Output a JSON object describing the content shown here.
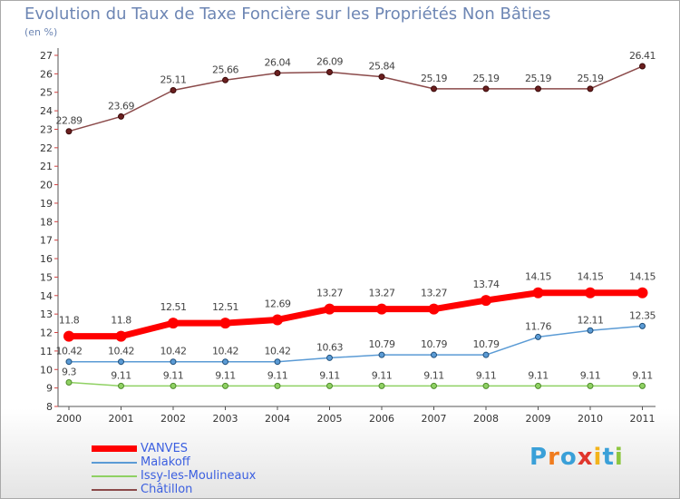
{
  "title": "Evolution du Taux de Taxe Foncière sur les Propriétés Non Bâties",
  "subtitle": "(en %)",
  "logo": {
    "letters": [
      "P",
      "r",
      "o",
      "x",
      "i",
      "t",
      "i"
    ]
  },
  "chart_data": {
    "type": "line",
    "categories": [
      "2000",
      "2001",
      "2002",
      "2003",
      "2004",
      "2005",
      "2006",
      "2007",
      "2008",
      "2009",
      "2010",
      "2011"
    ],
    "ylim": [
      8,
      27
    ],
    "yticks": [
      "8",
      "9",
      "10",
      "11",
      "12",
      "13",
      "14",
      "15",
      "16",
      "17",
      "18",
      "19",
      "20",
      "21",
      "22",
      "23",
      "24",
      "25",
      "26",
      "27"
    ],
    "grid": false,
    "legend_position": "bottom-left",
    "series": [
      {
        "name": "VANVES",
        "color": "#ff0000",
        "values": [
          11.8,
          11.8,
          12.51,
          12.51,
          12.69,
          13.27,
          13.27,
          13.27,
          13.74,
          14.15,
          14.15,
          14.15
        ],
        "labels": [
          "11.8",
          "11.8",
          "12.51",
          "12.51",
          "12.69",
          "13.27",
          "13.27",
          "13.27",
          "13.74",
          "14.15",
          "14.15",
          "14.15"
        ]
      },
      {
        "name": "Malakoff",
        "color": "#5b9bd5",
        "values": [
          10.42,
          10.42,
          10.42,
          10.42,
          10.42,
          10.63,
          10.79,
          10.79,
          10.79,
          11.76,
          12.11,
          12.35
        ],
        "labels": [
          "10.42",
          "10.42",
          "10.42",
          "10.42",
          "10.42",
          "10.63",
          "10.79",
          "10.79",
          "10.79",
          "11.76",
          "12.11",
          "12.35"
        ]
      },
      {
        "name": "Issy-les-Moulineaux",
        "color": "#8fd163",
        "values": [
          9.3,
          9.11,
          9.11,
          9.11,
          9.11,
          9.11,
          9.11,
          9.11,
          9.11,
          9.11,
          9.11,
          9.11
        ],
        "labels": [
          "9.3",
          "9.11",
          "9.11",
          "9.11",
          "9.11",
          "9.11",
          "9.11",
          "9.11",
          "9.11",
          "9.11",
          "9.11",
          "9.11"
        ]
      },
      {
        "name": "Châtillon",
        "color": "#8b4a4a",
        "values": [
          22.89,
          23.69,
          25.11,
          25.66,
          26.04,
          26.09,
          25.84,
          25.19,
          25.19,
          25.19,
          25.19,
          26.41
        ],
        "labels": [
          "22.89",
          "23.69",
          "25.11",
          "25.66",
          "26.04",
          "26.09",
          "25.84",
          "25.19",
          "25.19",
          "25.19",
          "25.19",
          "26.41"
        ]
      }
    ]
  }
}
